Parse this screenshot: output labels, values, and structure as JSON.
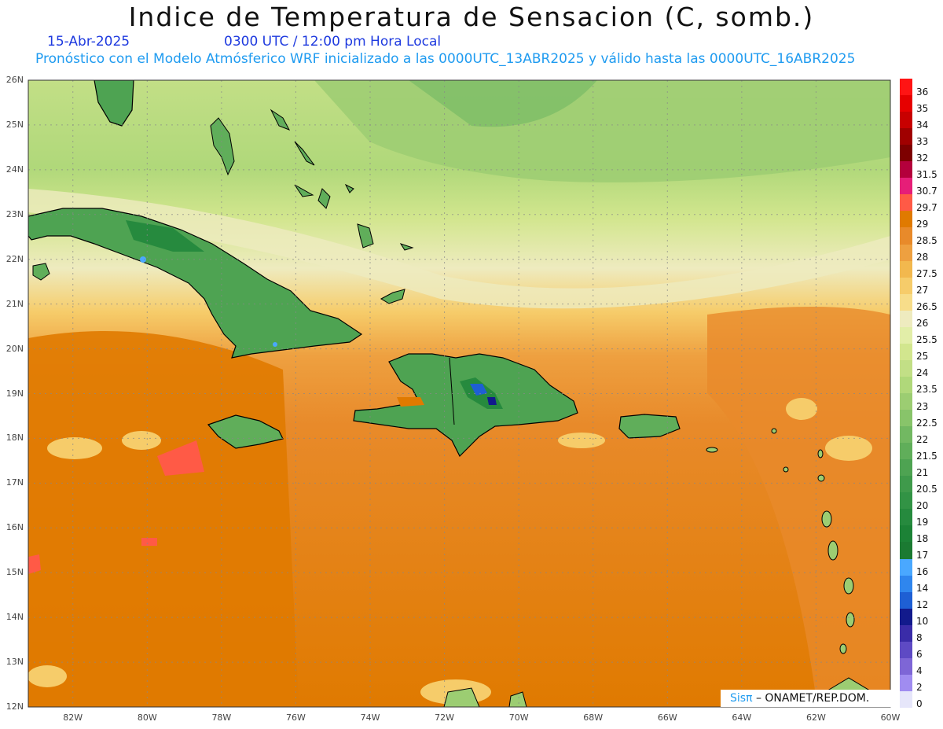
{
  "header": {
    "title": "Indice de Temperatura de Sensacion (C, somb.)",
    "date": "15-Abr-2025",
    "time": "0300 UTC / 12:00 pm Hora Local",
    "forecast": "Pronóstico con el Modelo Atmósferico WRF inicializado a las 0000UTC_13ABR2025 y válido hasta las  0000UTC_16ABR2025"
  },
  "map": {
    "lat_labels": [
      "26N",
      "25N",
      "24N",
      "23N",
      "22N",
      "21N",
      "20N",
      "19N",
      "18N",
      "17N",
      "16N",
      "15N",
      "14N",
      "13N",
      "12N"
    ],
    "lon_labels": [
      "82W",
      "80W",
      "78W",
      "76W",
      "74W",
      "72W",
      "70W",
      "68W",
      "66W",
      "64W",
      "62W",
      "60W"
    ],
    "extent": {
      "lat": [
        12,
        26
      ],
      "lon": [
        -83.2,
        -60
      ]
    },
    "regions": [
      "Cuba",
      "Jamaica",
      "Hispaniola",
      "Puerto Rico",
      "Bahamas",
      "Florida",
      "Lesser Antilles"
    ]
  },
  "colorbar": {
    "labels": [
      "36",
      "35",
      "34",
      "33",
      "32",
      "31.5",
      "30.7",
      "29.7",
      "29",
      "28.5",
      "28",
      "27.5",
      "27",
      "26.5",
      "26",
      "25.5",
      "25",
      "24",
      "23.5",
      "23",
      "22.5",
      "22",
      "21.5",
      "21",
      "20.5",
      "20",
      "19",
      "18",
      "17",
      "16",
      "14",
      "12",
      "10",
      "8",
      "6",
      "4",
      "2",
      "0"
    ],
    "colors": [
      "#ff1414",
      "#e60000",
      "#c80000",
      "#a00000",
      "#7d0000",
      "#b4003c",
      "#e61e78",
      "#ff5a46",
      "#e07a00",
      "#e88a2a",
      "#eea040",
      "#f2b84e",
      "#f6cc6a",
      "#f7dd8a",
      "#eeebbf",
      "#e2eea8",
      "#d2e68e",
      "#c2df86",
      "#b0d87a",
      "#9ccd72",
      "#88c46a",
      "#72b862",
      "#60ae5a",
      "#4ea352",
      "#3f9a4b",
      "#329345",
      "#268a3e",
      "#1c8236",
      "#1b7a32",
      "#4aa8ff",
      "#2f86ee",
      "#1e5fd4",
      "#121a8c",
      "#3a2ca8",
      "#5e4ac4",
      "#7e66d6",
      "#a08cf0",
      "#e6e6fa"
    ]
  },
  "credit": {
    "brand": "Sisπ",
    "text": " – ONAMET/REP.DOM."
  }
}
